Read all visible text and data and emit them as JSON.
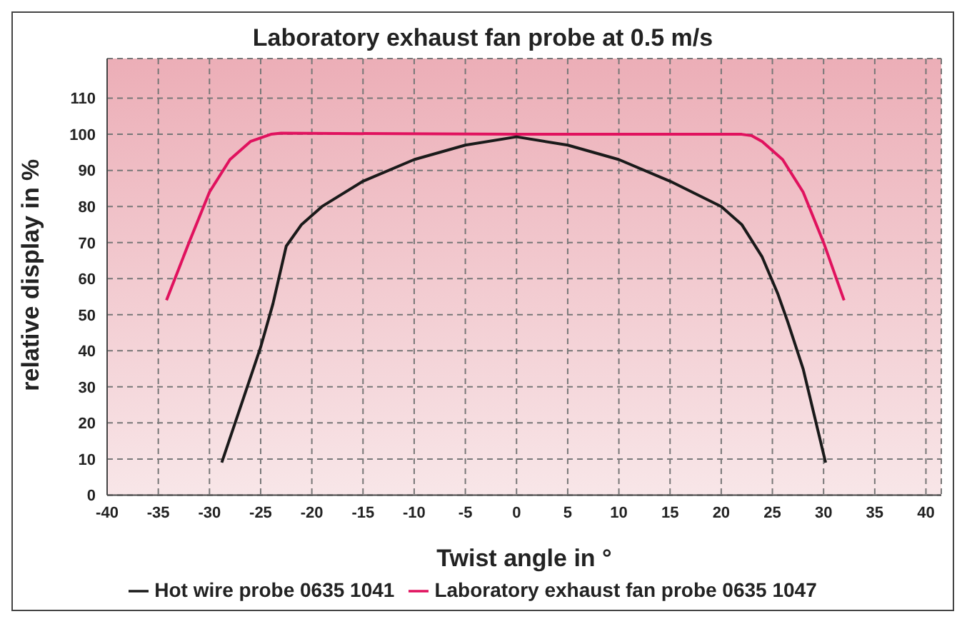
{
  "chart_data": {
    "type": "line",
    "title": "Laboratory exhaust fan probe at 0.5 m/s",
    "xlabel": "Twist angle in °",
    "ylabel": "relative display in %",
    "xlim": [
      -40,
      41.5
    ],
    "xticks": [
      -40,
      -35,
      -30,
      -25,
      -20,
      -15,
      -10,
      -5,
      0,
      5,
      10,
      15,
      20,
      25,
      30,
      35,
      40
    ],
    "ylim": [
      0,
      121
    ],
    "yticks": [
      0,
      10,
      20,
      30,
      40,
      50,
      60,
      70,
      80,
      90,
      100,
      110
    ],
    "grid": true,
    "legend": "bottom",
    "marker": "none",
    "line_style": "solid",
    "series": [
      {
        "name": "Laboratory exhaust fan probe 0635 1047",
        "color": "#e0125e",
        "x": [
          -34.2,
          -32,
          -30,
          -28,
          -26,
          -24,
          -23,
          0,
          22,
          23,
          24,
          26,
          28,
          30,
          32
        ],
        "values": [
          54,
          70,
          84,
          93,
          98,
          100,
          100.3,
          100,
          100,
          99.6,
          98,
          93,
          84,
          70,
          54
        ]
      },
      {
        "name": "Hot wire probe 0635 1041",
        "color": "#1a1a1a",
        "x": [
          -28.8,
          -25,
          -23.8,
          -22.5,
          -21,
          -19,
          -15,
          -10,
          -5,
          0,
          5,
          10,
          15,
          20,
          22,
          24,
          25.5,
          26.5,
          28,
          30.2
        ],
        "values": [
          9,
          41,
          53,
          69,
          75,
          80,
          87,
          93,
          97,
          99.3,
          97,
          93,
          87,
          80,
          75,
          66,
          56,
          48,
          35,
          9
        ]
      }
    ]
  }
}
